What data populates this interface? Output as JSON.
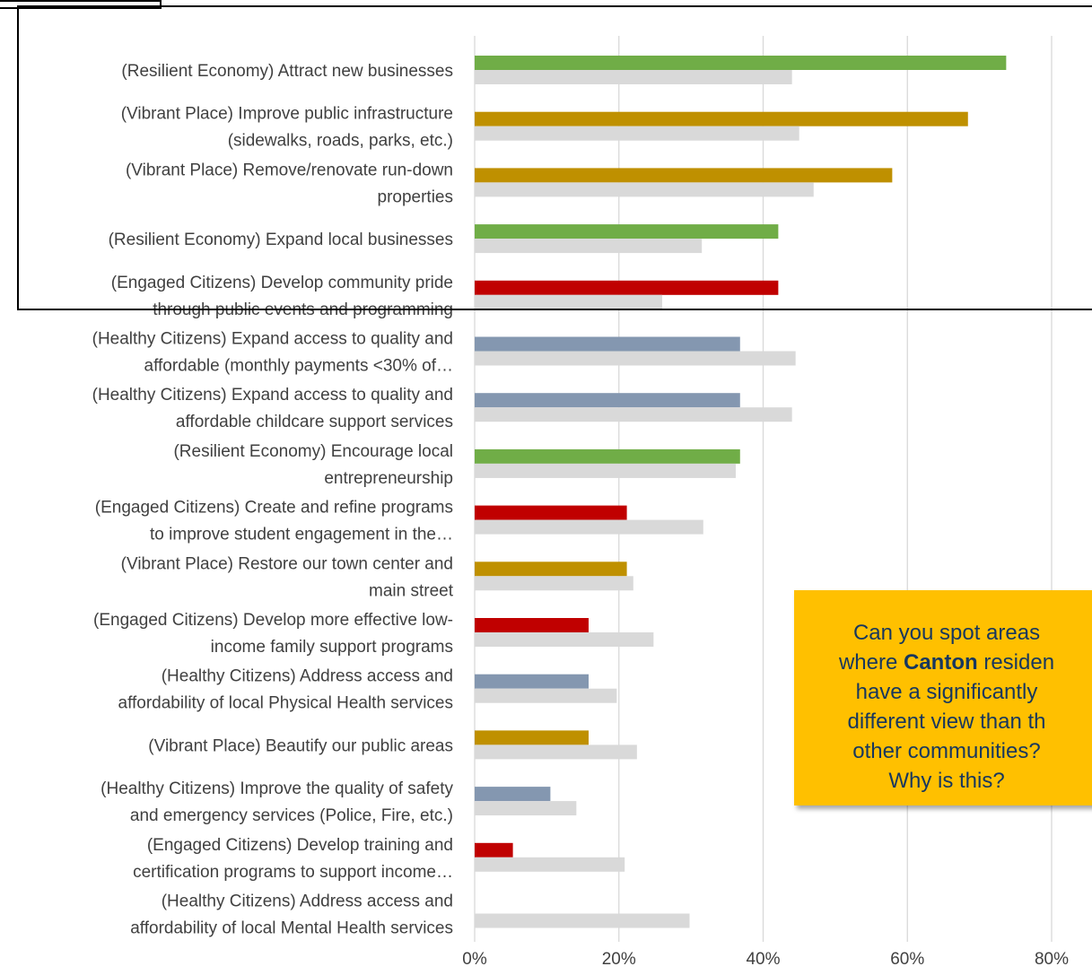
{
  "chart_data": {
    "type": "bar",
    "orientation": "horizontal",
    "xlim": [
      0,
      0.8
    ],
    "x_ticks": [
      "0%",
      "20%",
      "40%",
      "60%",
      "80%"
    ],
    "grid": true,
    "categories": [
      [
        "(Resilient Economy) Attract new businesses"
      ],
      [
        "(Vibrant Place) Improve public infrastructure",
        "(sidewalks, roads, parks, etc.)"
      ],
      [
        "(Vibrant Place) Remove/renovate run-down",
        "properties"
      ],
      [
        "(Resilient Economy) Expand local businesses"
      ],
      [
        "(Engaged Citizens) Develop community pride",
        "through public events and programming"
      ],
      [
        "(Healthy Citizens) Expand access to quality and",
        "affordable (monthly payments <30% of…"
      ],
      [
        "(Healthy Citizens) Expand access to quality and",
        "affordable childcare support services"
      ],
      [
        "(Resilient Economy) Encourage local",
        "entrepreneurship"
      ],
      [
        "(Engaged Citizens) Create and refine programs",
        "to improve student engagement in the…"
      ],
      [
        "(Vibrant Place) Restore our town center and",
        "main street"
      ],
      [
        "(Engaged Citizens) Develop more effective low-",
        "income family support programs"
      ],
      [
        "(Healthy Citizens) Address access and",
        "affordability of local Physical Health services"
      ],
      [
        "(Vibrant Place) Beautify our public areas"
      ],
      [
        "(Healthy Citizens) Improve the quality of safety",
        "and emergency services (Police, Fire, etc.)"
      ],
      [
        "(Engaged Citizens) Develop training and",
        "certification programs to support income…"
      ],
      [
        "(Healthy Citizens) Address access and",
        "affordability of local Mental Health services"
      ]
    ],
    "series": [
      {
        "values": [
          0.737,
          0.684,
          0.579,
          0.421,
          0.421,
          0.368,
          0.368,
          0.368,
          0.211,
          0.211,
          0.158,
          0.158,
          0.158,
          0.105,
          0.053,
          0.0
        ],
        "colors": [
          "#70ad47",
          "#bf9000",
          "#bf9000",
          "#70ad47",
          "#c00000",
          "#8497b0",
          "#8497b0",
          "#70ad47",
          "#c00000",
          "#bf9000",
          "#c00000",
          "#8497b0",
          "#bf9000",
          "#8497b0",
          "#c00000",
          "#8497b0"
        ]
      },
      {
        "values": [
          0.44,
          0.45,
          0.47,
          0.315,
          0.26,
          0.445,
          0.44,
          0.362,
          0.317,
          0.22,
          0.248,
          0.197,
          0.225,
          0.141,
          0.208,
          0.298
        ],
        "color": "#d9d9d9"
      }
    ]
  },
  "callout": {
    "line1": "Can you spot areas",
    "line2_pre": "where ",
    "line2_bold": "Canton",
    "line2_post": " residen",
    "line3": "have a significantly",
    "line4": "different view than th",
    "line5": "other communities?",
    "line6": "Why is this?",
    "bg_color": "#ffc000"
  }
}
